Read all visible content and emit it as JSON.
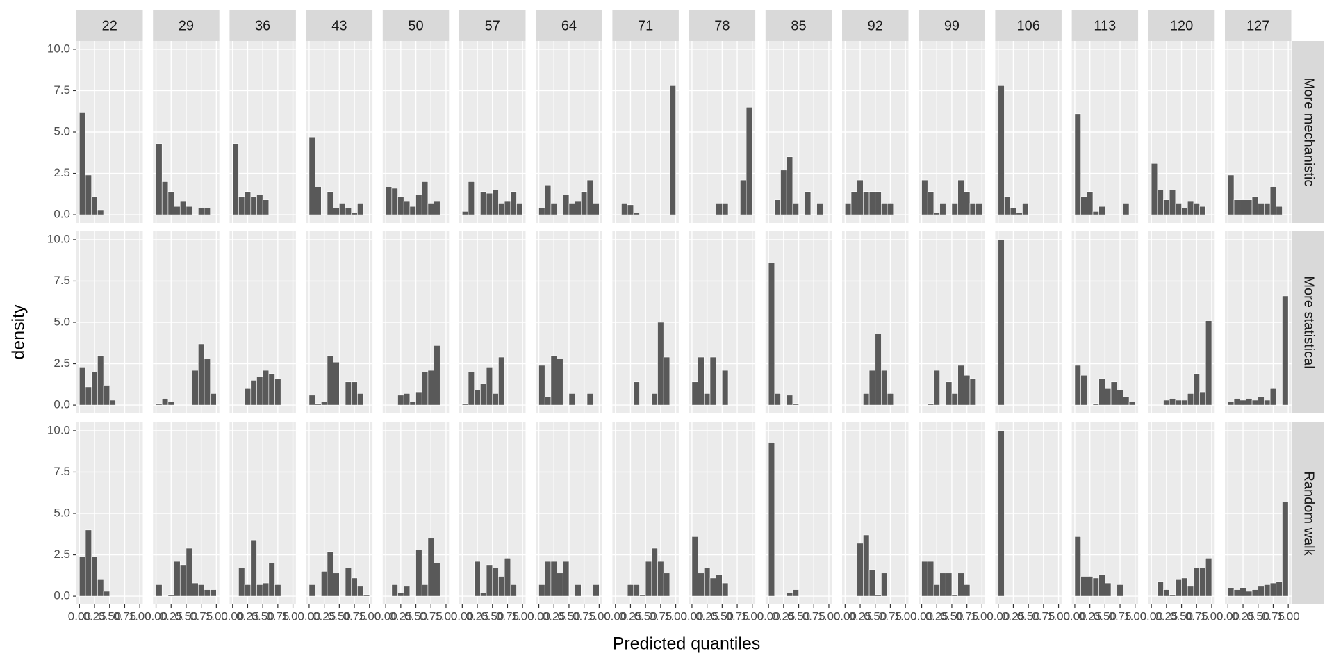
{
  "chart_data": {
    "type": "histogram",
    "x_label": "Predicted quantiles",
    "y_label": "density",
    "facet_columns": [
      "22",
      "29",
      "36",
      "43",
      "50",
      "57",
      "64",
      "71",
      "78",
      "85",
      "92",
      "99",
      "106",
      "113",
      "120",
      "127"
    ],
    "bins": [
      0,
      0.1,
      0.2,
      0.3,
      0.4,
      0.5,
      0.6,
      0.7,
      0.8,
      0.9,
      1
    ],
    "xlim": [
      -0.05,
      1.05
    ],
    "xticks": [
      {
        "value": 0,
        "label": "0.00"
      },
      {
        "value": 0.25,
        "label": "0.25"
      },
      {
        "value": 0.5,
        "label": "0.50"
      },
      {
        "value": 0.75,
        "label": "0.75"
      },
      {
        "value": 1,
        "label": "1.00"
      }
    ],
    "ylim": [
      -0.5,
      10.5
    ],
    "yticks": [
      {
        "value": 0,
        "label": "0.0"
      },
      2.5,
      {
        "value": 5,
        "label": "5.0"
      },
      7.5,
      {
        "value": 10,
        "label": "10.0"
      }
    ],
    "grid": true,
    "color": "#595959",
    "series": [
      {
        "name": "More mechanistic",
        "values": [
          [
            6.2,
            2.4,
            1.1,
            0.3,
            0,
            0,
            0,
            0,
            0,
            0
          ],
          [
            4.3,
            2.0,
            1.4,
            0.5,
            0.8,
            0.5,
            0,
            0.4,
            0.4,
            0
          ],
          [
            4.3,
            1.1,
            1.4,
            1.1,
            1.2,
            0.9,
            0,
            0,
            0,
            0
          ],
          [
            4.7,
            1.7,
            0,
            1.4,
            0.4,
            0.7,
            0.4,
            0.1,
            0.7,
            0
          ],
          [
            1.7,
            1.6,
            1.1,
            0.8,
            0.5,
            1.2,
            2.0,
            0.7,
            0.8,
            0
          ],
          [
            0.2,
            2.0,
            0,
            1.4,
            1.3,
            1.5,
            0.7,
            0.8,
            1.4,
            0.7
          ],
          [
            0.4,
            1.8,
            0.7,
            0,
            1.2,
            0.7,
            0.8,
            1.4,
            2.1,
            0.7
          ],
          [
            0,
            0.7,
            0.6,
            0.1,
            0,
            0,
            0,
            0,
            0,
            7.8
          ],
          [
            0,
            0,
            0,
            0,
            0.7,
            0.7,
            0,
            0,
            2.1,
            6.5
          ],
          [
            0,
            0.9,
            2.7,
            3.5,
            0.7,
            0,
            1.4,
            0,
            0.7,
            0
          ],
          [
            0.7,
            1.4,
            2.1,
            1.4,
            1.4,
            1.4,
            0.7,
            0.7,
            0,
            0
          ],
          [
            2.1,
            1.4,
            0.1,
            0.7,
            0,
            0.7,
            2.1,
            1.4,
            0.7,
            0.7
          ],
          [
            7.8,
            1.1,
            0.4,
            0.1,
            0.7,
            0,
            0,
            0,
            0,
            0
          ],
          [
            6.1,
            1.1,
            1.4,
            0.2,
            0.5,
            0,
            0,
            0,
            0.7,
            0
          ],
          [
            3.1,
            1.5,
            0.9,
            1.5,
            0.7,
            0.4,
            0.8,
            0.7,
            0.5,
            0
          ],
          [
            2.4,
            0.9,
            0.9,
            0.9,
            1.1,
            0.7,
            0.7,
            1.7,
            0.5,
            0
          ]
        ]
      },
      {
        "name": "More statistical",
        "values": [
          [
            2.3,
            1.1,
            2.0,
            3.0,
            1.2,
            0.3,
            0,
            0,
            0,
            0
          ],
          [
            0.1,
            0.4,
            0.2,
            0,
            0,
            0,
            2.1,
            3.7,
            2.8,
            0.7
          ],
          [
            0,
            0,
            1.0,
            1.5,
            1.7,
            2.1,
            1.9,
            1.6,
            0,
            0
          ],
          [
            0.6,
            0.1,
            0.2,
            3.0,
            2.6,
            0,
            1.4,
            1.4,
            0.7,
            0
          ],
          [
            0,
            0,
            0.6,
            0.7,
            0.2,
            0.8,
            2.0,
            2.1,
            3.6,
            0
          ],
          [
            0.1,
            2.0,
            0.9,
            1.3,
            2.3,
            0.7,
            2.9,
            0,
            0,
            0
          ],
          [
            2.4,
            0.5,
            3.0,
            2.8,
            0,
            0.7,
            0,
            0,
            0.7,
            0
          ],
          [
            0,
            0,
            0,
            1.4,
            0,
            0,
            0.7,
            5.0,
            2.9,
            0
          ],
          [
            1.4,
            2.9,
            0.7,
            2.9,
            0,
            2.1,
            0,
            0,
            0,
            0
          ],
          [
            8.6,
            0.7,
            0,
            0.6,
            0.1,
            0,
            0,
            0,
            0,
            0
          ],
          [
            0,
            0,
            0,
            0.7,
            2.1,
            4.3,
            2.1,
            0.7,
            0,
            0
          ],
          [
            0,
            0.1,
            2.1,
            0,
            1.4,
            0.7,
            2.4,
            1.8,
            1.6,
            0
          ],
          [
            10,
            0,
            0,
            0,
            0,
            0,
            0,
            0,
            0,
            0
          ],
          [
            2.4,
            1.8,
            0,
            0.1,
            1.6,
            1.0,
            1.4,
            0.9,
            0.5,
            0.2
          ],
          [
            0,
            0,
            0.3,
            0.4,
            0.3,
            0.3,
            0.7,
            1.9,
            0.8,
            5.1
          ],
          [
            0.2,
            0.4,
            0.3,
            0.4,
            0.3,
            0.5,
            0.3,
            1.0,
            0,
            6.6
          ]
        ]
      },
      {
        "name": "Random walk",
        "values": [
          [
            2.4,
            4.0,
            2.4,
            1.0,
            0.3,
            0,
            0,
            0,
            0,
            0
          ],
          [
            0.7,
            0,
            0.1,
            2.1,
            1.9,
            2.9,
            0.8,
            0.7,
            0.4,
            0.4
          ],
          [
            0,
            1.7,
            0.7,
            3.4,
            0.7,
            0.8,
            2.0,
            0.7,
            0,
            0
          ],
          [
            0.7,
            0,
            1.5,
            2.7,
            1.4,
            0,
            1.7,
            1.1,
            0.6,
            0.1
          ],
          [
            0,
            0.7,
            0.2,
            0.6,
            0,
            2.8,
            0.7,
            3.5,
            2.0,
            0
          ],
          [
            0,
            0,
            2.1,
            0.2,
            1.9,
            1.7,
            1.2,
            2.3,
            0.7,
            0
          ],
          [
            0.7,
            2.1,
            2.1,
            1.4,
            2.1,
            0,
            0.7,
            0,
            0,
            0.7
          ],
          [
            0,
            0,
            0.7,
            0.7,
            0.1,
            2.1,
            2.9,
            2.1,
            1.4,
            0
          ],
          [
            3.6,
            1.4,
            1.7,
            1.1,
            1.3,
            0.8,
            0,
            0,
            0,
            0
          ],
          [
            9.3,
            0,
            0,
            0.2,
            0.4,
            0,
            0,
            0,
            0,
            0
          ],
          [
            0,
            0,
            3.2,
            3.7,
            1.6,
            0.1,
            1.4,
            0,
            0,
            0
          ],
          [
            2.1,
            2.1,
            0.7,
            1.4,
            1.4,
            0.1,
            1.4,
            0.7,
            0,
            0
          ],
          [
            10,
            0,
            0,
            0,
            0,
            0,
            0,
            0,
            0,
            0
          ],
          [
            3.6,
            1.2,
            1.2,
            1.1,
            1.3,
            0.8,
            0,
            0.7,
            0,
            0
          ],
          [
            0,
            0.9,
            0.4,
            0.1,
            1.0,
            1.1,
            0.6,
            1.7,
            1.7,
            2.3
          ],
          [
            0.5,
            0.4,
            0.5,
            0.3,
            0.4,
            0.6,
            0.7,
            0.8,
            0.9,
            5.7
          ]
        ]
      }
    ]
  }
}
